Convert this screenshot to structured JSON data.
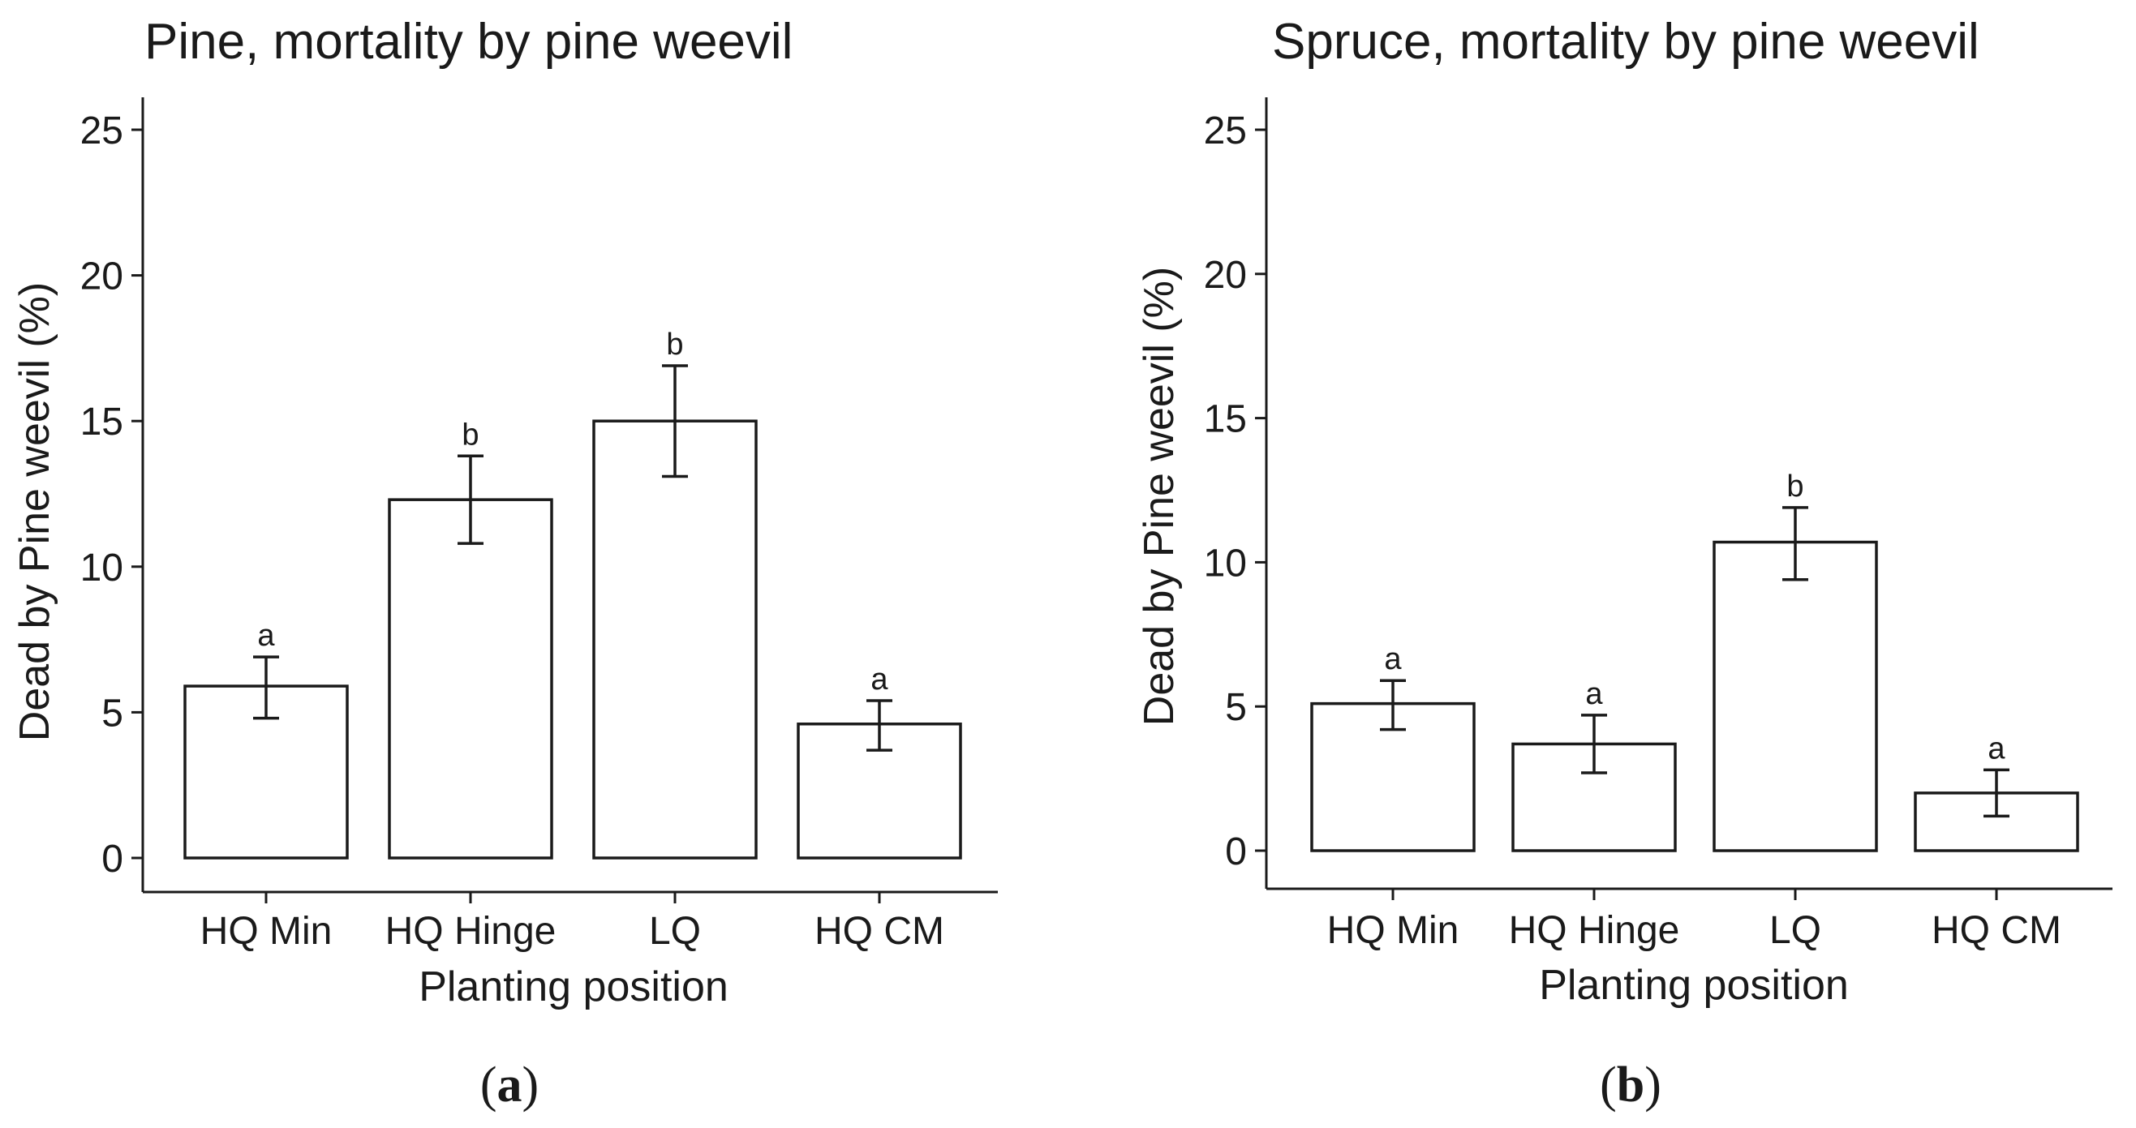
{
  "chart_data": [
    {
      "type": "bar",
      "panel_id": "a",
      "caption": "(a)",
      "title": "Pine, mortality by pine weevil",
      "xlabel": "Planting position",
      "ylabel": "Dead by Pine weevil (%)",
      "ylim": [
        0,
        26
      ],
      "yticks": [
        0,
        5,
        10,
        15,
        20,
        25
      ],
      "categories": [
        "HQ Min",
        "HQ Hinge",
        "LQ",
        "HQ CM"
      ],
      "values": [
        5.9,
        12.3,
        15.0,
        4.6
      ],
      "error_low": [
        4.8,
        10.8,
        13.1,
        3.7
      ],
      "error_high": [
        6.9,
        13.8,
        16.9,
        5.4
      ],
      "significance": [
        "a",
        "b",
        "b",
        "a"
      ],
      "grid": false,
      "legend": "none"
    },
    {
      "type": "bar",
      "panel_id": "b",
      "caption": "(b)",
      "title": "Spruce, mortality by pine weevil",
      "xlabel": "Planting position",
      "ylabel": "Dead by Pine weevil (%)",
      "ylim": [
        0,
        26
      ],
      "yticks": [
        0,
        5,
        10,
        15,
        20,
        25
      ],
      "categories": [
        "HQ Min",
        "HQ Hinge",
        "LQ",
        "HQ CM"
      ],
      "values": [
        5.1,
        3.7,
        10.7,
        2.0
      ],
      "error_low": [
        4.2,
        2.7,
        9.4,
        1.2
      ],
      "error_high": [
        5.9,
        4.7,
        11.9,
        2.8
      ],
      "significance": [
        "a",
        "a",
        "b",
        "a"
      ],
      "grid": false,
      "legend": "none"
    }
  ]
}
